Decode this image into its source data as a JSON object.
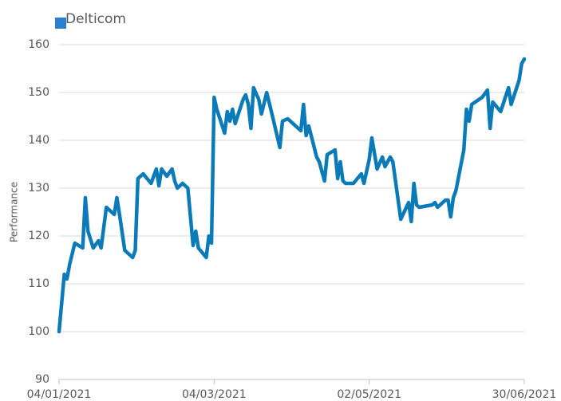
{
  "chart_data": {
    "type": "line",
    "y_label": "Performance",
    "x": [
      "04/01/2021",
      "06/01/2021",
      "07/01/2021",
      "08/01/2021",
      "10/01/2021",
      "13/01/2021",
      "14/01/2021",
      "15/01/2021",
      "17/01/2021",
      "19/01/2021",
      "20/01/2021",
      "22/01/2021",
      "25/01/2021",
      "26/01/2021",
      "27/01/2021",
      "29/01/2021",
      "01/02/2021",
      "02/02/2021",
      "03/02/2021",
      "05/02/2021",
      "08/02/2021",
      "10/02/2021",
      "11/02/2021",
      "12/02/2021",
      "14/02/2021",
      "16/02/2021",
      "17/02/2021",
      "18/02/2021",
      "20/02/2021",
      "22/02/2021",
      "24/02/2021",
      "25/02/2021",
      "26/02/2021",
      "01/03/2021",
      "02/03/2021",
      "03/03/2021",
      "04/03/2021",
      "05/03/2021",
      "08/03/2021",
      "09/03/2021",
      "10/03/2021",
      "11/03/2021",
      "12/03/2021",
      "15/03/2021",
      "16/03/2021",
      "17/03/2021",
      "18/03/2021",
      "19/03/2021",
      "21/03/2021",
      "22/03/2021",
      "24/03/2021",
      "26/03/2021",
      "29/03/2021",
      "30/03/2021",
      "01/04/2021",
      "05/04/2021",
      "06/04/2021",
      "07/04/2021",
      "08/04/2021",
      "09/04/2021",
      "12/04/2021",
      "13/04/2021",
      "15/04/2021",
      "16/04/2021",
      "19/04/2021",
      "20/04/2021",
      "21/04/2021",
      "22/04/2021",
      "23/04/2021",
      "26/04/2021",
      "29/04/2021",
      "30/04/2021",
      "02/05/2021",
      "03/05/2021",
      "05/05/2021",
      "07/05/2021",
      "08/05/2021",
      "10/05/2021",
      "11/05/2021",
      "14/05/2021",
      "17/05/2021",
      "18/05/2021",
      "19/05/2021",
      "20/05/2021",
      "21/05/2021",
      "26/05/2021",
      "27/05/2021",
      "28/05/2021",
      "31/05/2021",
      "01/06/2021",
      "02/06/2021",
      "03/06/2021",
      "04/06/2021",
      "07/06/2021",
      "08/06/2021",
      "09/06/2021",
      "10/06/2021",
      "14/06/2021",
      "16/06/2021",
      "17/06/2021",
      "18/06/2021",
      "21/06/2021",
      "24/06/2021",
      "25/06/2021",
      "28/06/2021",
      "29/06/2021",
      "30/06/2021"
    ],
    "series": [
      {
        "name": "Delticom",
        "color": "#0a7ab8",
        "legend_color": "#2a7fcf",
        "values": [
          100,
          112,
          111,
          114,
          118.5,
          117.5,
          128,
          121,
          117.5,
          119,
          117.5,
          126,
          124.5,
          128,
          124.5,
          117,
          115.5,
          117,
          132,
          133,
          131,
          134,
          130.5,
          134,
          132.5,
          134,
          131.5,
          130,
          131,
          130,
          118,
          121,
          117.5,
          115.5,
          120,
          118.5,
          149,
          146.5,
          141.5,
          146,
          144,
          146.5,
          143.5,
          148.5,
          149.5,
          147.5,
          142.5,
          151,
          148.5,
          145.5,
          150,
          145.5,
          138.5,
          144,
          144.5,
          142.5,
          142,
          147.5,
          141,
          143,
          136.5,
          135.5,
          131.5,
          137,
          138,
          132,
          135.5,
          131.5,
          131,
          131,
          133,
          131,
          136,
          140.5,
          134,
          136.5,
          134.5,
          136.5,
          135.5,
          123.5,
          127,
          123,
          131,
          126.5,
          126,
          126.5,
          127,
          126,
          127.5,
          127.5,
          124,
          128,
          129.5,
          138,
          146.5,
          144,
          147.5,
          149,
          150.5,
          142.5,
          148,
          146,
          151,
          147.5,
          152.5,
          156,
          157
        ]
      }
    ],
    "xlim": [
      "04/01/2021",
      "30/06/2021"
    ],
    "xticks": [
      "04/01/2021",
      "04/03/2021",
      "02/05/2021",
      "30/06/2021"
    ],
    "ylim": [
      90,
      160
    ],
    "yticks": [
      90,
      100,
      110,
      120,
      130,
      140,
      150,
      160
    ],
    "grid": true
  }
}
